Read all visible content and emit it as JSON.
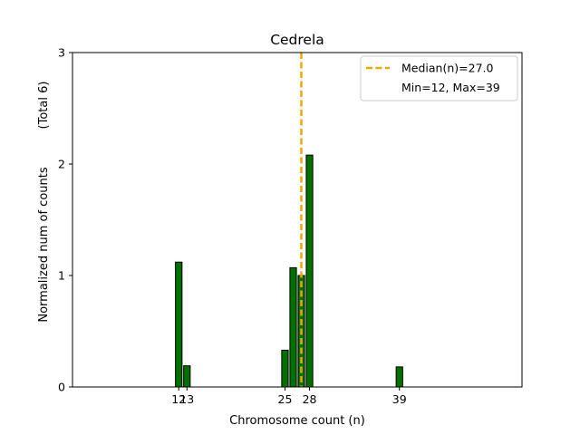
{
  "chart_data": {
    "type": "bar",
    "title": "Cedrela",
    "xlabel": "Chromosome count (n)",
    "ylabel": "Normalized num of counts",
    "ylabel_suffix": "(Total 6)",
    "xlim": [
      -1,
      54
    ],
    "ylim": [
      0,
      3
    ],
    "xticks": [
      12,
      13,
      25,
      28,
      39
    ],
    "yticks": [
      0,
      1,
      2,
      3
    ],
    "bars": [
      {
        "x": 12,
        "value": 1.12
      },
      {
        "x": 13,
        "value": 0.19
      },
      {
        "x": 25,
        "value": 0.33
      },
      {
        "x": 26,
        "value": 1.07
      },
      {
        "x": 27,
        "value": 1.0
      },
      {
        "x": 28,
        "value": 2.08
      },
      {
        "x": 39,
        "value": 0.18
      }
    ],
    "median": 27.0,
    "legend": {
      "placement": "top-right",
      "entries": [
        "Median(n)=27.0",
        "Min=12, Max=39"
      ]
    },
    "colors": {
      "bar_fill": "#007000",
      "bar_edge": "#000000",
      "median_line": "#f0a800"
    },
    "grid": false
  }
}
